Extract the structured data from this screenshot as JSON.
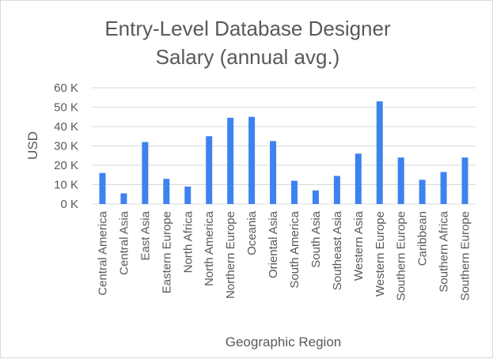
{
  "chart_data": {
    "type": "bar",
    "title": "Entry-Level Database Designer Salary (annual avg.)",
    "title_lines": [
      "Entry-Level Database Designer",
      "Salary (annual avg.)"
    ],
    "xlabel": "Geographic Region",
    "ylabel": "USD",
    "ylim": [
      0,
      60000
    ],
    "yticks": [
      0,
      10000,
      20000,
      30000,
      40000,
      50000,
      60000
    ],
    "ytick_labels": [
      "0 K",
      "10 K",
      "20 K",
      "30 K",
      "40 K",
      "50 K",
      "60 K"
    ],
    "grid": true,
    "legend": "none",
    "bar_color": "#3d83ee",
    "categories": [
      "Central America",
      "Central Asia",
      "East Asia",
      "Eastern Europe",
      "North Africa",
      "North America",
      "Northern Europe",
      "Oceania",
      "Oriental Asia",
      "South America",
      "South Asia",
      "Southeast Asia",
      "Western Asia",
      "Western Europe",
      "Southern Europe",
      "Caribbean",
      "Southern Africa",
      "Southern Europe"
    ],
    "values": [
      16000,
      5500,
      32000,
      13000,
      9000,
      35000,
      44500,
      45000,
      32500,
      12000,
      7000,
      14500,
      26000,
      53000,
      24000,
      12500,
      16500,
      24000
    ]
  }
}
